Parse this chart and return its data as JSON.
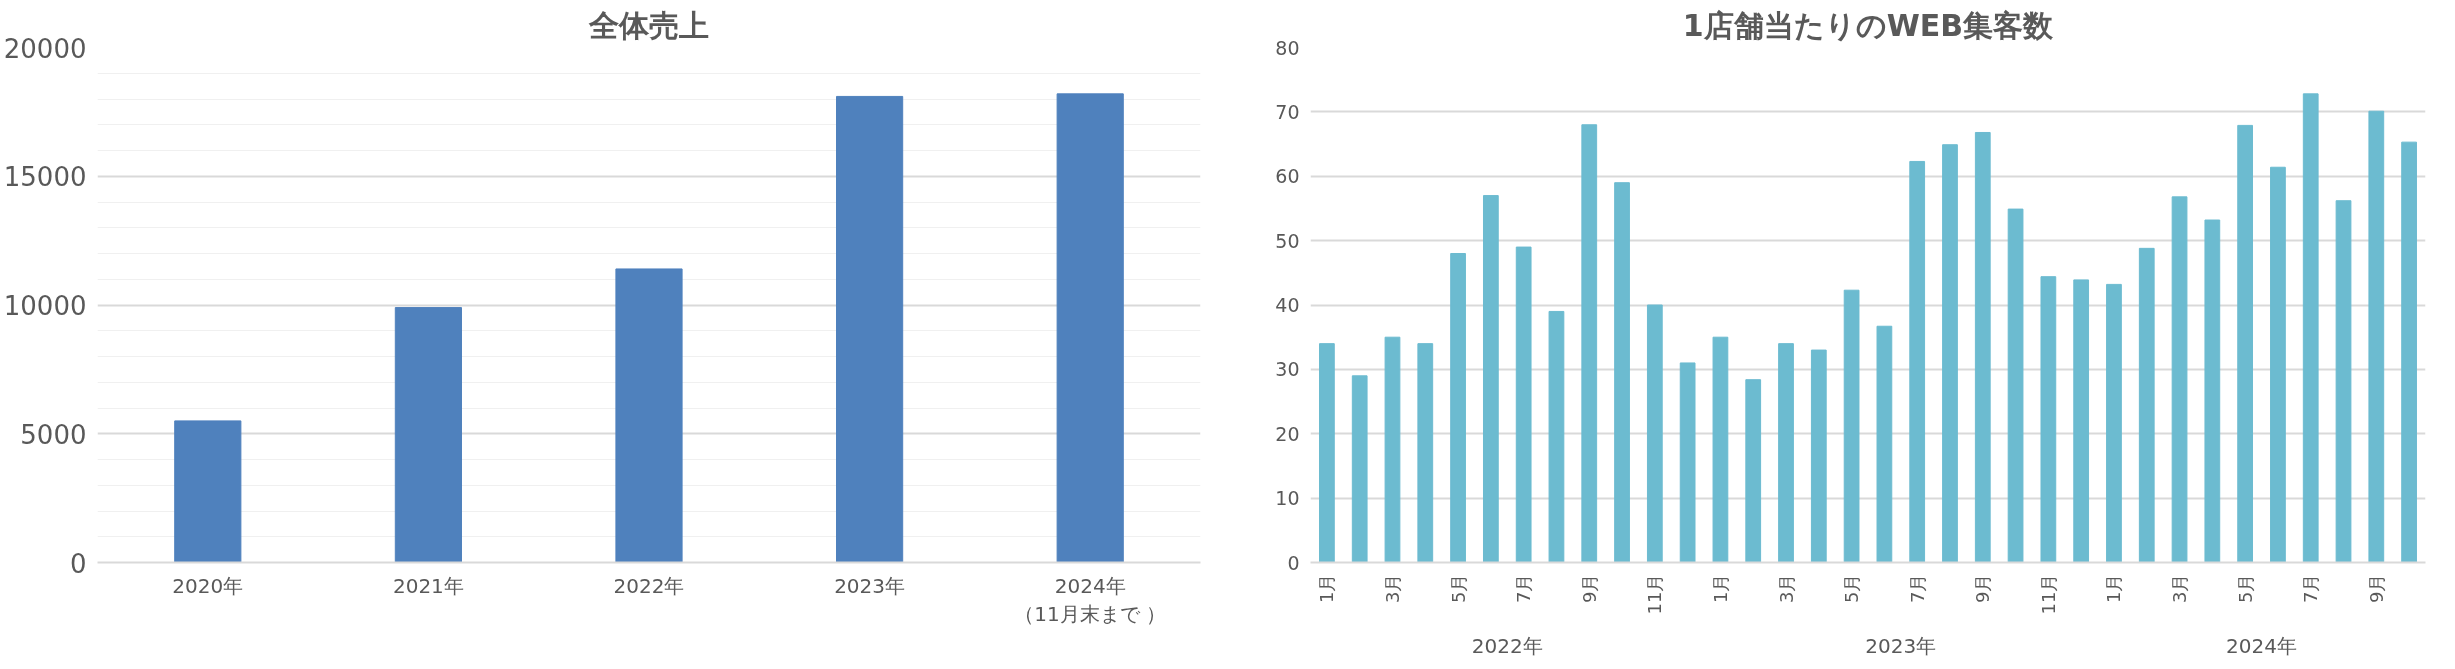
{
  "chart_data": [
    {
      "type": "bar",
      "title": "全体売上",
      "categories": [
        "2020年",
        "2021年",
        "2022年",
        "2023年",
        "2024年（11月末まで ）"
      ],
      "values": [
        5500,
        9900,
        11400,
        18100,
        18200
      ],
      "color": "#4f81bd",
      "ylim": [
        0,
        20000
      ],
      "yticks": [
        0,
        {
          "value": 1000,
          "label": null
        },
        {
          "value": 2000,
          "label": null
        },
        {
          "value": 3000,
          "label": null
        },
        {
          "value": 4000,
          "label": null
        },
        5000,
        {
          "value": 6000,
          "label": null
        },
        {
          "value": 7000,
          "label": null
        },
        {
          "value": 8000,
          "label": null
        },
        {
          "value": 9000,
          "label": null
        },
        10000,
        {
          "value": 11000,
          "label": null
        },
        {
          "value": 12000,
          "label": null
        },
        {
          "value": 13000,
          "label": null
        },
        {
          "value": 14000,
          "label": null
        },
        15000,
        {
          "value": 16000,
          "label": null
        },
        {
          "value": 17000,
          "label": null
        },
        {
          "value": 18000,
          "label": null
        },
        {
          "value": 19000,
          "label": null
        },
        20000
      ],
      "grid": "y"
    },
    {
      "type": "bar",
      "title": "1店舗当たりのWEB集客数",
      "categories": [
        "1月",
        null,
        "3月",
        null,
        "5月",
        null,
        "7月",
        null,
        "9月",
        null,
        "11月",
        null,
        "1月",
        null,
        "3月",
        null,
        "5月",
        null,
        "7月",
        null,
        "9月",
        null,
        "11月",
        null,
        "1月",
        null,
        "3月",
        null,
        "5月",
        null,
        "7月",
        null,
        "9月",
        null
      ],
      "values": [
        34,
        29,
        35,
        34,
        48,
        57,
        49,
        39,
        68,
        59,
        40,
        31,
        35,
        28.4,
        34,
        33,
        42.3,
        36.7,
        62.3,
        64.9,
        66.8,
        54.9,
        44.4,
        43.9,
        43.2,
        48.8,
        56.8,
        53.2,
        67.9,
        61.4,
        72.8,
        56.2,
        70.1,
        65.3
      ],
      "color": "#6cbbd0",
      "ylim": [
        0,
        80
      ],
      "yticks": [
        0,
        10,
        20,
        30,
        40,
        50,
        60,
        70,
        80
      ],
      "grid": "y",
      "annotations": [
        "2022年",
        "2023年",
        "2024年"
      ]
    }
  ]
}
